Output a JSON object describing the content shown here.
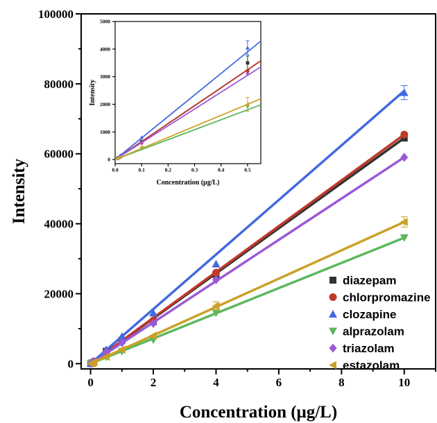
{
  "chart_data": [
    {
      "type": "scatter",
      "title": "",
      "xlabel": "Concentration (μg/L)",
      "ylabel": "Intensity",
      "xlim": [
        -0.3,
        11
      ],
      "ylim": [
        -1500,
        100000
      ],
      "xticks": [
        0,
        2,
        4,
        6,
        8,
        10
      ],
      "yticks": [
        0,
        20000,
        40000,
        60000,
        80000,
        100000
      ],
      "legend_position": "bottom-right",
      "series": [
        {
          "name": "diazepam",
          "color": "#333333",
          "marker": "square",
          "x": [
            0.01,
            0.05,
            0.1,
            0.5,
            1,
            2,
            4,
            10
          ],
          "y": [
            45,
            200,
            350,
            3550,
            6700,
            12000,
            25500,
            64500
          ],
          "err": [
            0,
            0,
            0,
            0,
            0,
            0,
            0,
            0
          ],
          "fit": {
            "slope": 6450,
            "intercept": 0
          }
        },
        {
          "name": "chlorpromazine",
          "color": "#c0392b",
          "marker": "circle",
          "x": [
            0.01,
            0.05,
            0.1,
            0.5,
            1,
            2,
            4,
            10
          ],
          "y": [
            55,
            230,
            600,
            3300,
            6800,
            12300,
            26000,
            65500
          ],
          "err": [
            0,
            0,
            0,
            0,
            0,
            0,
            0,
            0
          ],
          "fit": {
            "slope": 6550,
            "intercept": 0
          }
        },
        {
          "name": "clozapine",
          "color": "#4169e1",
          "marker": "triangle-up",
          "x": [
            0.01,
            0.05,
            0.1,
            0.5,
            1,
            2,
            4,
            10
          ],
          "y": [
            60,
            300,
            750,
            4000,
            7800,
            14500,
            28500,
            77500
          ],
          "err": [
            0,
            0,
            0,
            0,
            0,
            0,
            0,
            2000
          ],
          "fit": {
            "slope": 7800,
            "intercept": 0
          }
        },
        {
          "name": "alprazolam",
          "color": "#5cb85c",
          "marker": "triangle-down",
          "x": [
            0.01,
            0.05,
            0.1,
            0.5,
            1,
            2,
            4,
            10
          ],
          "y": [
            35,
            150,
            300,
            1900,
            3500,
            6800,
            14500,
            36000
          ],
          "err": [
            0,
            0,
            0,
            0,
            0,
            0,
            0,
            0
          ],
          "fit": {
            "slope": 3600,
            "intercept": 0
          }
        },
        {
          "name": "triazolam",
          "color": "#9b59d6",
          "marker": "diamond",
          "x": [
            0.01,
            0.05,
            0.1,
            0.5,
            1,
            2,
            4,
            10
          ],
          "y": [
            40,
            200,
            420,
            3200,
            6000,
            11500,
            24000,
            59000
          ],
          "err": [
            0,
            0,
            0,
            0,
            0,
            0,
            0,
            0
          ],
          "fit": {
            "slope": 5900,
            "intercept": 0
          }
        },
        {
          "name": "estazolam",
          "color": "#c9a227",
          "marker": "triangle-left",
          "x": [
            0.01,
            0.05,
            0.1,
            0.5,
            1,
            2,
            4,
            10
          ],
          "y": [
            40,
            170,
            350,
            2000,
            4000,
            8000,
            16500,
            40500
          ],
          "err": [
            0,
            0,
            0,
            0,
            0,
            0,
            1200,
            1500
          ],
          "fit": {
            "slope": 4050,
            "intercept": 0
          }
        }
      ]
    },
    {
      "type": "scatter",
      "title": "",
      "xlabel": "Concentration (μg/L)",
      "ylabel": "Intensity",
      "xlim": [
        0,
        0.55
      ],
      "ylim": [
        -150,
        5000
      ],
      "xticks": [
        0.0,
        0.1,
        0.2,
        0.3,
        0.4,
        0.5
      ],
      "xtick_labels": [
        "0.0",
        "0.1",
        "0.2",
        "0.3",
        "0.4",
        "0.5"
      ],
      "yticks": [
        0,
        1000,
        2000,
        3000,
        4000,
        5000
      ],
      "series": [
        {
          "name": "diazepam",
          "color": "#333333",
          "marker": "square",
          "x": [
            0.01,
            0.02,
            0.1,
            0.5
          ],
          "y": [
            50,
            100,
            650,
            3500
          ],
          "err": [
            0,
            0,
            0,
            250
          ],
          "fit": {
            "slope": 6500,
            "intercept": 0
          }
        },
        {
          "name": "chlorpromazine",
          "color": "#c0392b",
          "marker": "circle",
          "x": [
            0.01,
            0.02,
            0.1,
            0.5
          ],
          "y": [
            55,
            120,
            600,
            3200
          ],
          "err": [
            0,
            0,
            0,
            0
          ],
          "fit": {
            "slope": 6500,
            "intercept": 0
          }
        },
        {
          "name": "clozapine",
          "color": "#4169e1",
          "marker": "triangle-up",
          "x": [
            0.01,
            0.02,
            0.1,
            0.5
          ],
          "y": [
            60,
            150,
            800,
            4050
          ],
          "err": [
            0,
            0,
            0,
            250
          ],
          "fit": {
            "slope": 7800,
            "intercept": 0
          }
        },
        {
          "name": "alprazolam",
          "color": "#5cb85c",
          "marker": "triangle-down",
          "x": [
            0.01,
            0.02,
            0.1,
            0.5
          ],
          "y": [
            35,
            80,
            400,
            1900
          ],
          "err": [
            0,
            0,
            0,
            0
          ],
          "fit": {
            "slope": 3600,
            "intercept": 0
          }
        },
        {
          "name": "triazolam",
          "color": "#9b59d6",
          "marker": "diamond",
          "x": [
            0.01,
            0.02,
            0.1,
            0.5
          ],
          "y": [
            40,
            100,
            600,
            3100
          ],
          "err": [
            0,
            0,
            0,
            0
          ],
          "fit": {
            "slope": 6100,
            "intercept": 0
          }
        },
        {
          "name": "estazolam",
          "color": "#c9a227",
          "marker": "triangle-left",
          "x": [
            0.01,
            0.02,
            0.1,
            0.5
          ],
          "y": [
            40,
            90,
            450,
            2000
          ],
          "err": [
            0,
            0,
            0,
            250
          ],
          "fit": {
            "slope": 4000,
            "intercept": 0
          }
        }
      ]
    }
  ]
}
